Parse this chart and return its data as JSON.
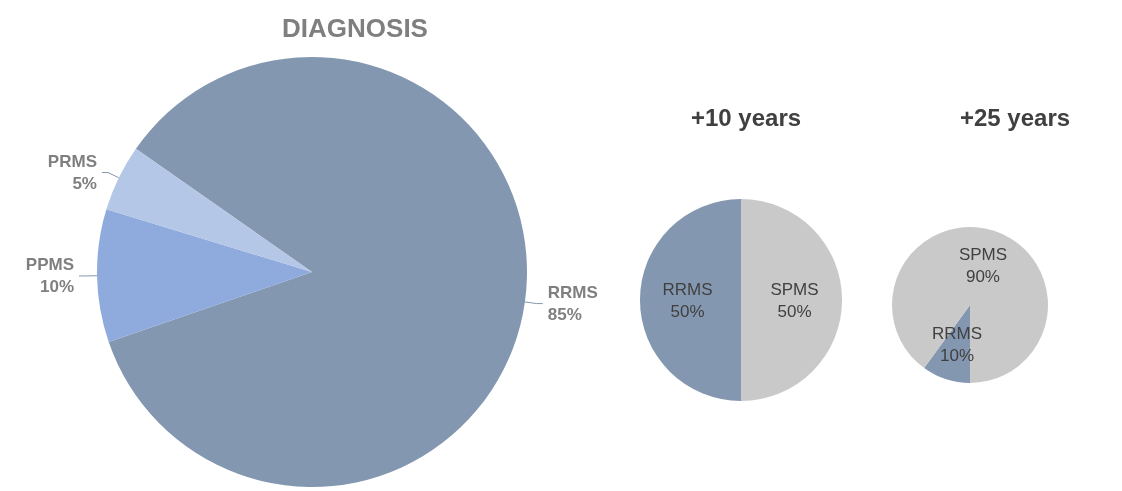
{
  "chart_data": [
    {
      "type": "pie",
      "title": "DIAGNOSIS",
      "categories": [
        "RRMS",
        "PPMS",
        "PRMS"
      ],
      "values": [
        85,
        10,
        5
      ],
      "value_labels": [
        "85%",
        "10%",
        "5%"
      ],
      "colors": [
        "#8497b0",
        "#8faadc",
        "#b4c7e7"
      ],
      "legend": false
    },
    {
      "type": "pie",
      "title": "+10 years",
      "categories": [
        "RRMS",
        "SPMS"
      ],
      "values": [
        50,
        50
      ],
      "value_labels": [
        "50%",
        "50%"
      ],
      "colors": [
        "#8497b0",
        "#c9c9c9"
      ],
      "legend": false
    },
    {
      "type": "pie",
      "title": "+25 years",
      "categories": [
        "RRMS",
        "SPMS"
      ],
      "values": [
        10,
        90
      ],
      "value_labels": [
        "10%",
        "90%"
      ],
      "colors": [
        "#8497b0",
        "#c9c9c9"
      ],
      "legend": false
    }
  ]
}
